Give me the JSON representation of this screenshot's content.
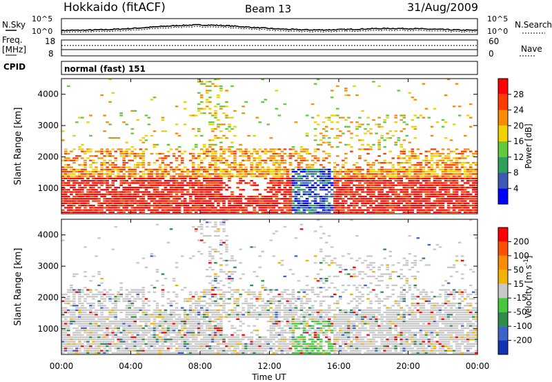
{
  "header": {
    "title": "Hokkaido (fitACF)",
    "beam": "Beam 13",
    "date": "31/Aug/2009"
  },
  "params": {
    "nsky_label": "N.Sky",
    "nsky_top": "10^5",
    "nsky_bottom": "10^0",
    "nsearch_label": "N.Search",
    "freq_label": "Freq.",
    "freq_unit": "[MHz]",
    "freq_top": "18",
    "freq_bottom": "8",
    "nave_label": "Nave",
    "nave_top": "60",
    "nave_bottom": "0",
    "cpid_label": "CPID",
    "cpid_value": "normal (fast) 151"
  },
  "chart_data": [
    {
      "type": "heatmap",
      "name": "Power",
      "ylabel": "Slant Range [km]",
      "yticks": [
        "1000",
        "2000",
        "3000",
        "4000"
      ],
      "ylim": [
        180,
        4500
      ],
      "colorbar_label": "Power [dB]",
      "colorbar_ticks": [
        "4",
        "8",
        "12",
        "16",
        "20",
        "24",
        "28"
      ],
      "colors": [
        "#0000ff",
        "#3c5ab4",
        "#2ea05a",
        "#64c83c",
        "#f0d200",
        "#fa8c00",
        "#ff3c00",
        "#ff0000"
      ]
    },
    {
      "type": "heatmap",
      "name": "Velocity",
      "ylabel": "Slant Range [km]",
      "yticks": [
        "1000",
        "2000",
        "3000",
        "4000"
      ],
      "ylim": [
        180,
        4500
      ],
      "colorbar_label": "Velocity [m s-1]",
      "colorbar_ticks": [
        "200",
        "100",
        "50",
        "15",
        "-15",
        "-50",
        "-100",
        "-200"
      ],
      "colors": [
        "#1432b4",
        "#3c64c8",
        "#2e8c46",
        "#46c83c",
        "#c8c8c8",
        "#f0b400",
        "#fa8c00",
        "#fa5000",
        "#ff0000"
      ]
    }
  ],
  "xaxis": {
    "label": "Time UT",
    "ticks": [
      "00:00",
      "04:00",
      "08:00",
      "12:00",
      "16:00",
      "20:00",
      "00:00"
    ]
  }
}
